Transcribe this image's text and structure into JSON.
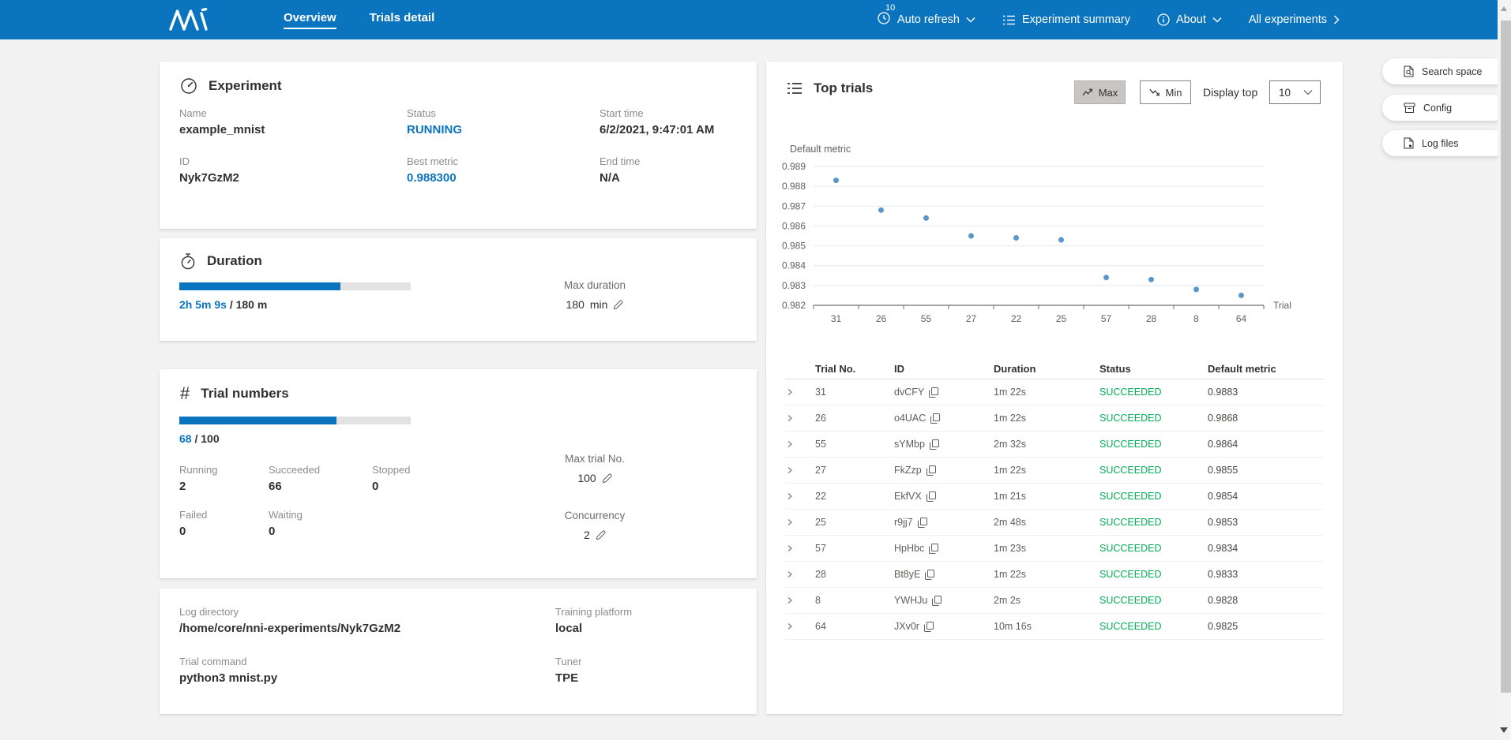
{
  "navbar": {
    "tabs": [
      {
        "label": "Overview",
        "active": true
      },
      {
        "label": "Trials detail",
        "active": false
      }
    ],
    "auto_refresh": {
      "badge": "10",
      "label": "Auto refresh"
    },
    "experiment_summary_label": "Experiment summary",
    "about_label": "About",
    "all_experiments_label": "All experiments"
  },
  "experiment_card": {
    "title": "Experiment",
    "fields": [
      {
        "label": "Name",
        "value": "example_mnist",
        "accent": false
      },
      {
        "label": "Status",
        "value": "RUNNING",
        "accent": true
      },
      {
        "label": "Start time",
        "value": "6/2/2021, 9:47:01 AM",
        "accent": false
      },
      {
        "label": "ID",
        "value": "Nyk7GzM2",
        "accent": false
      },
      {
        "label": "Best metric",
        "value": "0.988300",
        "accent": true
      },
      {
        "label": "End time",
        "value": "N/A",
        "accent": false
      }
    ]
  },
  "duration_card": {
    "title": "Duration",
    "progress_percent": 69.5,
    "elapsed": "2h 5m 9s",
    "total": " / 180 m",
    "max_duration_label": "Max duration",
    "max_duration_value": "180",
    "max_duration_unit": "min"
  },
  "trial_numbers_card": {
    "title": "Trial numbers",
    "progress_percent": 68,
    "done": "68",
    "total": " / 100",
    "stats": [
      {
        "label": "Running",
        "value": "2"
      },
      {
        "label": "Succeeded",
        "value": "66"
      },
      {
        "label": "Stopped",
        "value": "0"
      },
      {
        "label": "Failed",
        "value": "0"
      },
      {
        "label": "Waiting",
        "value": "0"
      }
    ],
    "max_trial_label": "Max trial No.",
    "max_trial_value": "100",
    "concurrency_label": "Concurrency",
    "concurrency_value": "2"
  },
  "info_card": {
    "fields": [
      {
        "label": "Log directory",
        "value": "/home/core/nni-experiments/Nyk7GzM2"
      },
      {
        "label": "Training platform",
        "value": "local"
      },
      {
        "label": "Trial command",
        "value": "python3 mnist.py"
      },
      {
        "label": "Tuner",
        "value": "TPE"
      }
    ]
  },
  "top_trials": {
    "title": "Top trials",
    "max_button": "Max",
    "min_button": "Min",
    "display_top_label": "Display top",
    "display_top_value": "10",
    "table": {
      "headers": [
        "Trial No.",
        "ID",
        "Duration",
        "Status",
        "Default metric"
      ],
      "rows": [
        {
          "no": "31",
          "id": "dvCFY",
          "duration": "1m 22s",
          "status": "SUCCEEDED",
          "metric": "0.9883"
        },
        {
          "no": "26",
          "id": "o4UAC",
          "duration": "1m 22s",
          "status": "SUCCEEDED",
          "metric": "0.9868"
        },
        {
          "no": "55",
          "id": "sYMbp",
          "duration": "2m 32s",
          "status": "SUCCEEDED",
          "metric": "0.9864"
        },
        {
          "no": "27",
          "id": "FkZzp",
          "duration": "1m 22s",
          "status": "SUCCEEDED",
          "metric": "0.9855"
        },
        {
          "no": "22",
          "id": "EkfVX",
          "duration": "1m 21s",
          "status": "SUCCEEDED",
          "metric": "0.9854"
        },
        {
          "no": "25",
          "id": "r9jj7",
          "duration": "2m 48s",
          "status": "SUCCEEDED",
          "metric": "0.9853"
        },
        {
          "no": "57",
          "id": "HpHbc",
          "duration": "1m 23s",
          "status": "SUCCEEDED",
          "metric": "0.9834"
        },
        {
          "no": "28",
          "id": "Bt8yE",
          "duration": "1m 22s",
          "status": "SUCCEEDED",
          "metric": "0.9833"
        },
        {
          "no": "8",
          "id": "YWHJu",
          "duration": "2m 2s",
          "status": "SUCCEEDED",
          "metric": "0.9828"
        },
        {
          "no": "64",
          "id": "JXv0r",
          "duration": "10m 16s",
          "status": "SUCCEEDED",
          "metric": "0.9825"
        }
      ]
    }
  },
  "chart_data": {
    "type": "scatter",
    "title": "Default metric",
    "x_label": "Trial",
    "categories": [
      "31",
      "26",
      "55",
      "27",
      "22",
      "25",
      "57",
      "28",
      "8",
      "64"
    ],
    "values": [
      0.9883,
      0.9868,
      0.9864,
      0.9855,
      0.9854,
      0.9853,
      0.9834,
      0.9833,
      0.9828,
      0.9825
    ],
    "y_ticks": [
      0.989,
      0.988,
      0.987,
      0.986,
      0.985,
      0.984,
      0.983,
      0.982
    ],
    "ylim": [
      0.982,
      0.989
    ],
    "grid": true,
    "legend": "none",
    "point_color": "#5a96c8"
  },
  "side_buttons": [
    {
      "label": "Search space"
    },
    {
      "label": "Config"
    },
    {
      "label": "Log files"
    }
  ],
  "colors": {
    "navbar_blue": "#0b74be",
    "accent_blue": "#0b74be",
    "success_green": "#00ad56",
    "point_blue": "#5a96c8",
    "page_background": "#f2f2f2"
  }
}
